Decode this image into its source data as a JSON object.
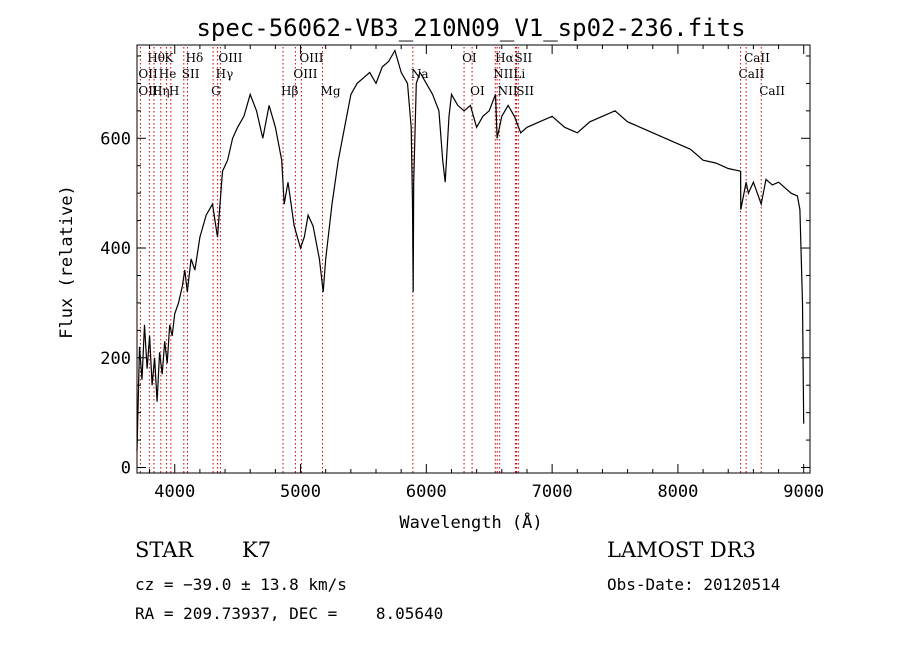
{
  "chart_data": {
    "type": "line",
    "title": "spec-56062-VB3_210N09_V1_sp02-236.fits",
    "xlabel": "Wavelength (Å)",
    "ylabel": "Flux (relative)",
    "xlim": [
      3700,
      9050
    ],
    "ylim": [
      -10,
      770
    ],
    "xticks": [
      4000,
      5000,
      6000,
      7000,
      8000,
      9000
    ],
    "yticks": [
      0,
      200,
      400,
      600
    ],
    "series": [
      {
        "name": "flux",
        "x": [
          3700,
          3720,
          3740,
          3760,
          3780,
          3800,
          3820,
          3840,
          3860,
          3880,
          3900,
          3920,
          3940,
          3960,
          3980,
          4000,
          4030,
          4060,
          4080,
          4100,
          4130,
          4160,
          4200,
          4250,
          4300,
          4340,
          4380,
          4420,
          4460,
          4500,
          4550,
          4600,
          4650,
          4700,
          4750,
          4800,
          4850,
          4870,
          4900,
          4950,
          5000,
          5030,
          5060,
          5100,
          5150,
          5180,
          5200,
          5250,
          5300,
          5350,
          5400,
          5450,
          5500,
          5550,
          5600,
          5650,
          5700,
          5750,
          5800,
          5850,
          5880,
          5890,
          5896,
          5900,
          5920,
          5950,
          6000,
          6050,
          6100,
          6130,
          6150,
          6180,
          6200,
          6250,
          6300,
          6350,
          6400,
          6450,
          6500,
          6550,
          6563,
          6600,
          6650,
          6700,
          6750,
          6800,
          6900,
          7000,
          7100,
          7200,
          7300,
          7400,
          7500,
          7600,
          7700,
          7800,
          7900,
          8000,
          8100,
          8200,
          8300,
          8400,
          8498,
          8500,
          8542,
          8560,
          8600,
          8662,
          8700,
          8750,
          8800,
          8850,
          8900,
          8950,
          8970,
          8990,
          9000
        ],
        "y": [
          30,
          220,
          160,
          260,
          180,
          240,
          150,
          200,
          120,
          210,
          170,
          230,
          190,
          260,
          240,
          280,
          300,
          330,
          360,
          320,
          380,
          360,
          420,
          460,
          480,
          420,
          540,
          560,
          600,
          620,
          640,
          680,
          650,
          600,
          660,
          620,
          560,
          480,
          520,
          440,
          400,
          420,
          460,
          440,
          380,
          320,
          380,
          480,
          560,
          620,
          680,
          700,
          710,
          720,
          700,
          730,
          740,
          760,
          720,
          700,
          620,
          480,
          320,
          520,
          700,
          720,
          700,
          680,
          650,
          560,
          520,
          640,
          680,
          660,
          650,
          660,
          620,
          640,
          650,
          680,
          600,
          640,
          660,
          640,
          610,
          620,
          630,
          640,
          620,
          610,
          630,
          640,
          650,
          630,
          620,
          610,
          600,
          590,
          580,
          560,
          555,
          545,
          540,
          470,
          520,
          500,
          520,
          480,
          525,
          515,
          520,
          510,
          500,
          495,
          470,
          300,
          80
        ]
      }
    ],
    "line_labels": [
      {
        "name": "Hθ",
        "x": 3798,
        "row": 1
      },
      {
        "name": "OII",
        "x": 3727,
        "row": 2
      },
      {
        "name": "OII",
        "x": 3727,
        "row": 3
      },
      {
        "name": "He",
        "x": 3889,
        "row": 2
      },
      {
        "name": "Hη",
        "x": 3835,
        "row": 3
      },
      {
        "name": "K",
        "x": 3934,
        "row": 1
      },
      {
        "name": "H",
        "x": 3969,
        "row": 3
      },
      {
        "name": "Hδ",
        "x": 4102,
        "row": 1
      },
      {
        "name": "SII",
        "x": 4072,
        "row": 2
      },
      {
        "name": "OIII",
        "x": 4363,
        "row": 1
      },
      {
        "name": "Hγ",
        "x": 4341,
        "row": 2
      },
      {
        "name": "G",
        "x": 4305,
        "row": 3
      },
      {
        "name": "OIII",
        "x": 5007,
        "row": 1
      },
      {
        "name": "OIII",
        "x": 4959,
        "row": 2
      },
      {
        "name": "Hβ",
        "x": 4861,
        "row": 3
      },
      {
        "name": "Mg",
        "x": 5175,
        "row": 3
      },
      {
        "name": "Na",
        "x": 5893,
        "row": 2
      },
      {
        "name": "OI",
        "x": 6300,
        "row": 1
      },
      {
        "name": "OI",
        "x": 6364,
        "row": 3
      },
      {
        "name": "Hα",
        "x": 6563,
        "row": 1
      },
      {
        "name": "SII",
        "x": 6717,
        "row": 1
      },
      {
        "name": "NII",
        "x": 6548,
        "row": 2
      },
      {
        "name": "Li",
        "x": 6708,
        "row": 2
      },
      {
        "name": "NII",
        "x": 6583,
        "row": 3
      },
      {
        "name": "SII",
        "x": 6731,
        "row": 3
      },
      {
        "name": "CaII",
        "x": 8542,
        "row": 1
      },
      {
        "name": "CaII",
        "x": 8498,
        "row": 2
      },
      {
        "name": "CaII",
        "x": 8662,
        "row": 3
      }
    ]
  },
  "info": {
    "object_class": "STAR",
    "subclass": "K7",
    "survey": "LAMOST DR3",
    "redshift_text": "cz = −39.0 ± 13.8 km/s",
    "obs_date_text": "Obs-Date: 20120514",
    "coords_text": "RA = 209.73937, DEC =    8.05640"
  },
  "colors": {
    "line_marker": "#cc0000",
    "spectrum": "#000000"
  }
}
